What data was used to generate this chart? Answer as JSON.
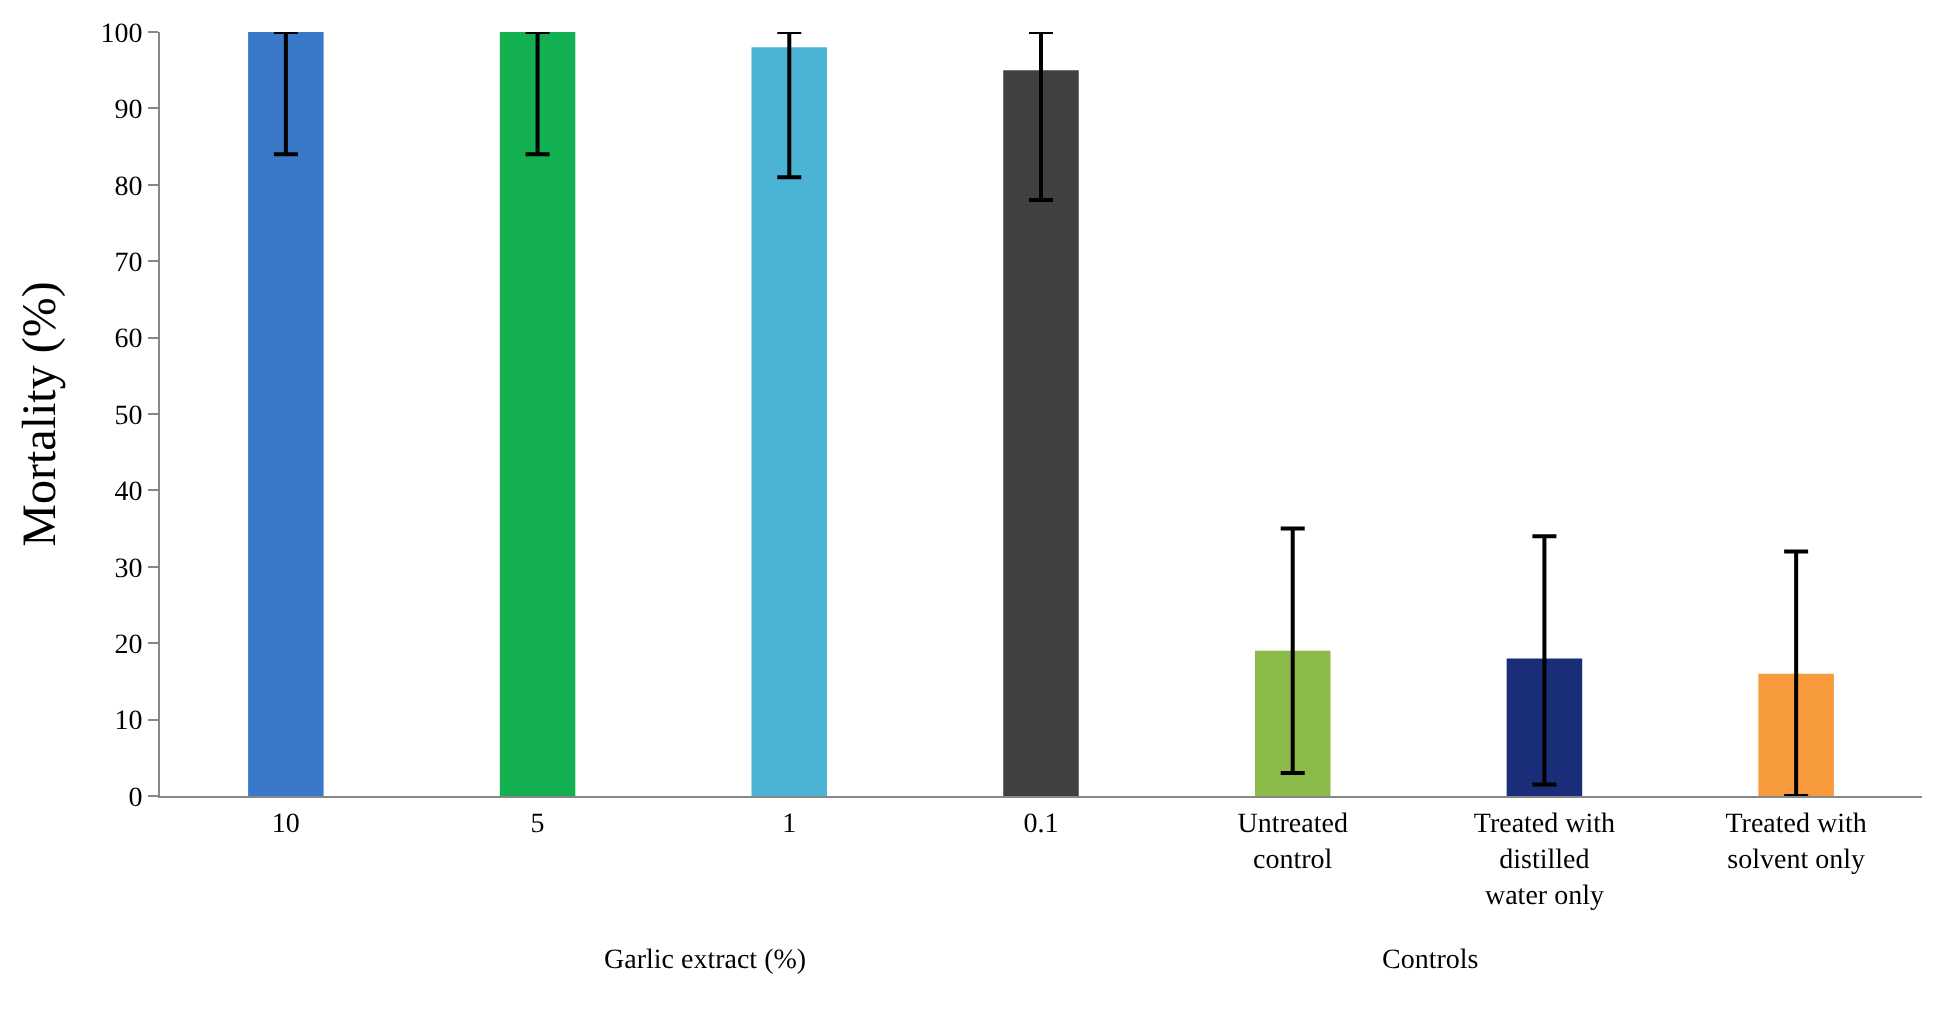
{
  "chart_data": {
    "type": "bar",
    "ylabel": "Mortality (%)",
    "categories": [
      "10",
      "5",
      "1",
      "0.1",
      "Untreated control",
      "Treated with distilled water only",
      "Treated with solvent only"
    ],
    "values": [
      100,
      100,
      98,
      95,
      19,
      18,
      16
    ],
    "colors": [
      "#3a78c8",
      "#12b050",
      "#4bb4d4",
      "#404040",
      "#8cba48",
      "#1a2d78",
      "#f79a3c"
    ],
    "errors": [
      [
        84,
        100
      ],
      [
        84,
        100
      ],
      [
        81,
        100
      ],
      [
        78,
        100
      ],
      [
        3,
        35
      ],
      [
        1.5,
        34
      ],
      [
        0,
        32
      ]
    ],
    "ylim": [
      0,
      100
    ],
    "yticks": [
      0,
      10,
      20,
      30,
      40,
      50,
      60,
      70,
      80,
      90,
      100
    ],
    "annotations": [
      "Garlic extract (%)",
      "Controls"
    ]
  }
}
